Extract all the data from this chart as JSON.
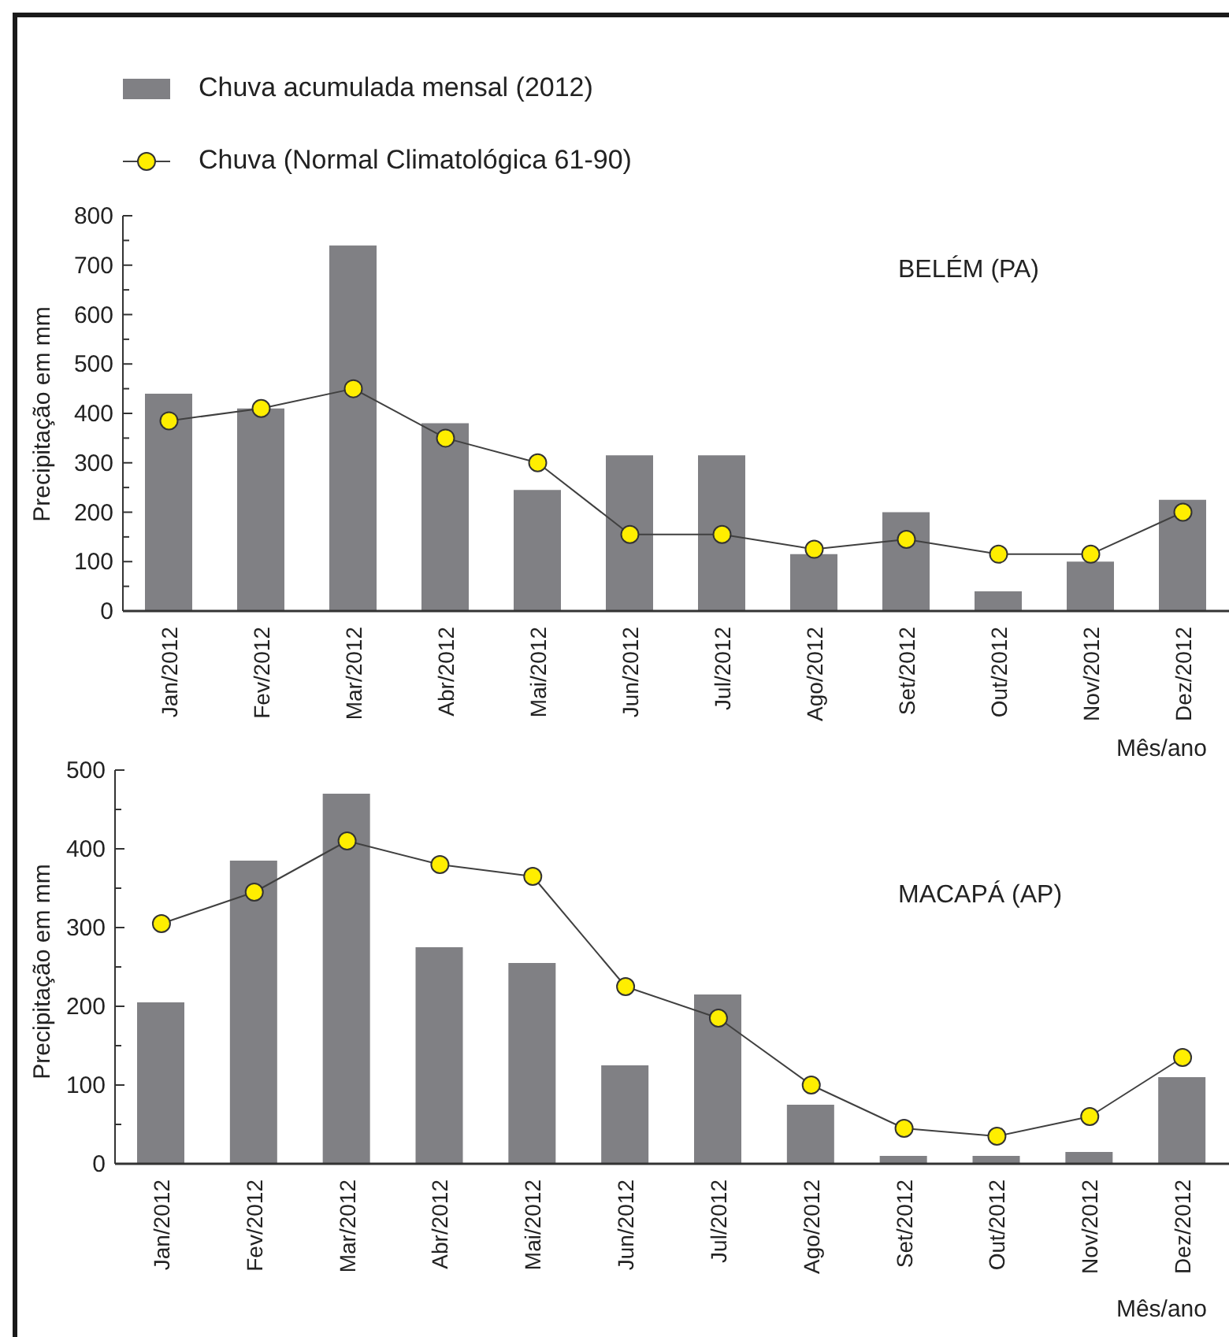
{
  "chart_data": [
    {
      "type": "bar",
      "title": "BELÉM (PA)",
      "xlabel": "Mês/ano",
      "ylabel": "Precipitação em mm",
      "legend": "top left",
      "marker": "circle",
      "categories": [
        "Jan/2012",
        "Fev/2012",
        "Mar/2012",
        "Abr/2012",
        "Mai/2012",
        "Jun/2012",
        "Jul/2012",
        "Ago/2012",
        "Set/2012",
        "Out/2012",
        "Nov/2012",
        "Dez/2012"
      ],
      "ylim": [
        0,
        800
      ],
      "yticks": [
        0,
        {
          "value": 50,
          "label": null
        },
        100,
        {
          "value": 150,
          "label": null
        },
        200,
        {
          "value": 250,
          "label": null
        },
        300,
        {
          "value": 350,
          "label": null
        },
        400,
        {
          "value": 450,
          "label": null
        },
        500,
        {
          "value": 550,
          "label": null
        },
        600,
        {
          "value": 650,
          "label": null
        },
        700,
        {
          "value": 750,
          "label": null
        },
        800
      ],
      "series": [
        {
          "name": "Chuva acumulada mensal (2012)",
          "color": "#808084",
          "values": [
            440,
            410,
            740,
            380,
            245,
            315,
            315,
            115,
            200,
            40,
            100,
            225
          ]
        },
        {
          "name": "Chuva (Normal Climatológica 61-90)",
          "type": "line",
          "color": "#ffee00",
          "values": [
            385,
            410,
            450,
            350,
            300,
            155,
            155,
            125,
            145,
            115,
            115,
            200
          ]
        }
      ]
    },
    {
      "type": "bar",
      "title": "MACAPÁ (AP)",
      "xlabel": "Mês/ano",
      "ylabel": "Precipitação em mm",
      "marker": "circle",
      "categories": [
        "Jan/2012",
        "Fev/2012",
        "Mar/2012",
        "Abr/2012",
        "Mai/2012",
        "Jun/2012",
        "Jul/2012",
        "Ago/2012",
        "Set/2012",
        "Out/2012",
        "Nov/2012",
        "Dez/2012"
      ],
      "ylim": [
        0,
        500
      ],
      "yticks": [
        0,
        {
          "value": 50,
          "label": null
        },
        100,
        {
          "value": 150,
          "label": null
        },
        200,
        {
          "value": 250,
          "label": null
        },
        300,
        {
          "value": 350,
          "label": null
        },
        400,
        {
          "value": 450,
          "label": null
        },
        500
      ],
      "series": [
        {
          "color": "#808084",
          "values": [
            205,
            385,
            470,
            275,
            255,
            125,
            215,
            75,
            10,
            10,
            15,
            110
          ]
        },
        {
          "type": "line",
          "color": "#ffee00",
          "values": [
            305,
            345,
            410,
            380,
            365,
            225,
            185,
            100,
            45,
            35,
            60,
            135
          ]
        }
      ]
    }
  ]
}
